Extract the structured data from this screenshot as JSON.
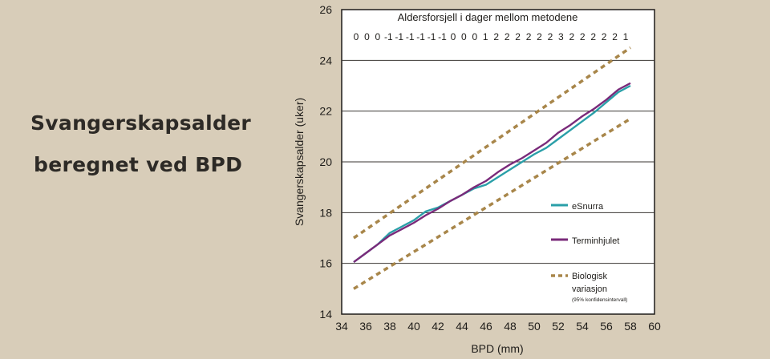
{
  "page": {
    "title_line1": "Svangerskapsalder",
    "title_line2": "beregnet ved BPD"
  },
  "chart_data": {
    "type": "line",
    "title": "Aldersforsjell i dager mellom metodene",
    "day_differences": [
      "0",
      "0",
      "0",
      "-1",
      "-1",
      "-1",
      "-1",
      "-1",
      "-1",
      "0",
      "0",
      "0",
      "1",
      "2",
      "2",
      "2",
      "2",
      "2",
      "2",
      "3",
      "2",
      "2",
      "2",
      "2",
      "2",
      "1"
    ],
    "xlabel": "BPD (mm)",
    "ylabel": "Svangerskapsalder (uker)",
    "xlim": [
      34,
      60
    ],
    "ylim": [
      14,
      26
    ],
    "xticks": [
      34,
      36,
      38,
      40,
      42,
      44,
      46,
      48,
      50,
      52,
      54,
      56,
      58,
      60
    ],
    "yticks": [
      14,
      16,
      18,
      20,
      22,
      24,
      26
    ],
    "grid": "horizontal",
    "series": [
      {
        "name": "eSnurra",
        "color": "#2a9fa8",
        "style": "solid",
        "points": [
          [
            35,
            16.05
          ],
          [
            36,
            16.4
          ],
          [
            37,
            16.75
          ],
          [
            38,
            17.2
          ],
          [
            39,
            17.45
          ],
          [
            40,
            17.7
          ],
          [
            41,
            18.05
          ],
          [
            42,
            18.2
          ],
          [
            43,
            18.45
          ],
          [
            44,
            18.7
          ],
          [
            45,
            18.95
          ],
          [
            46,
            19.1
          ],
          [
            47,
            19.4
          ],
          [
            48,
            19.7
          ],
          [
            49,
            20.0
          ],
          [
            50,
            20.3
          ],
          [
            51,
            20.55
          ],
          [
            52,
            20.9
          ],
          [
            53,
            21.25
          ],
          [
            54,
            21.6
          ],
          [
            55,
            21.95
          ],
          [
            56,
            22.35
          ],
          [
            57,
            22.75
          ],
          [
            58,
            23.0
          ]
        ]
      },
      {
        "name": "Terminhjulet",
        "color": "#7a2a7a",
        "style": "solid",
        "points": [
          [
            35,
            16.05
          ],
          [
            36,
            16.4
          ],
          [
            37,
            16.75
          ],
          [
            38,
            17.1
          ],
          [
            39,
            17.35
          ],
          [
            40,
            17.6
          ],
          [
            41,
            17.9
          ],
          [
            42,
            18.15
          ],
          [
            43,
            18.45
          ],
          [
            44,
            18.7
          ],
          [
            45,
            19.0
          ],
          [
            46,
            19.25
          ],
          [
            47,
            19.6
          ],
          [
            48,
            19.9
          ],
          [
            49,
            20.15
          ],
          [
            50,
            20.45
          ],
          [
            51,
            20.75
          ],
          [
            52,
            21.15
          ],
          [
            53,
            21.45
          ],
          [
            54,
            21.8
          ],
          [
            55,
            22.1
          ],
          [
            56,
            22.45
          ],
          [
            57,
            22.85
          ],
          [
            58,
            23.1
          ]
        ]
      },
      {
        "name": "Biologisk variasjon",
        "note": "(95% konfidensintervall)",
        "color": "#a8864a",
        "style": "dashed",
        "upper": [
          [
            35,
            17.0
          ],
          [
            58,
            24.5
          ]
        ],
        "lower": [
          [
            35,
            15.0
          ],
          [
            58,
            21.7
          ]
        ]
      }
    ],
    "legend": {
      "placement": "lower-right",
      "entries": [
        {
          "label": "eSnurra"
        },
        {
          "label": "Terminhjulet"
        },
        {
          "label_line1": "Biologisk",
          "label_line2": "variasjon",
          "note": "(95% konfidensintervall)"
        }
      ]
    }
  }
}
